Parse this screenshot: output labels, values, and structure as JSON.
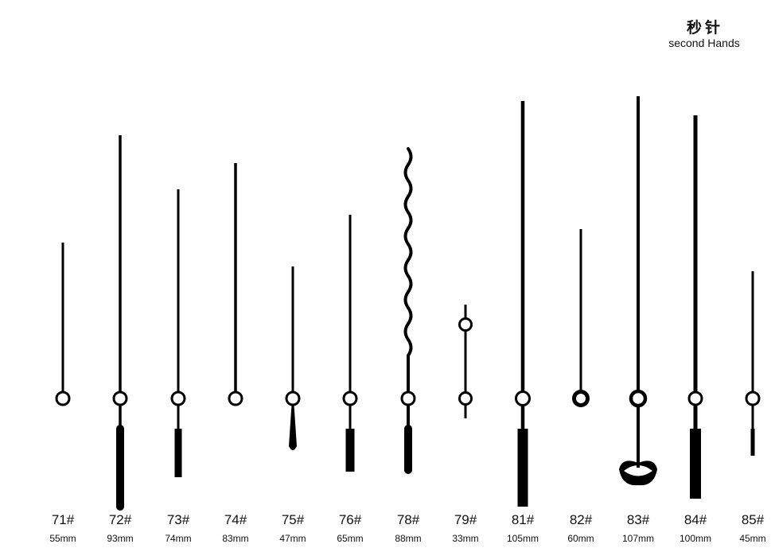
{
  "header": {
    "title_cn": "秒针",
    "title_en": "second Hands"
  },
  "hands": [
    {
      "code": "71#",
      "length": "55mm",
      "style": "plain"
    },
    {
      "code": "72#",
      "length": "93mm",
      "style": "long-tail"
    },
    {
      "code": "73#",
      "length": "74mm",
      "style": "tail"
    },
    {
      "code": "74#",
      "length": "83mm",
      "style": "plain"
    },
    {
      "code": "75#",
      "length": "47mm",
      "style": "tapered-tail"
    },
    {
      "code": "76#",
      "length": "65mm",
      "style": "tail"
    },
    {
      "code": "78#",
      "length": "88mm",
      "style": "wavy"
    },
    {
      "code": "79#",
      "length": "33mm",
      "style": "double-circle"
    },
    {
      "code": "81#",
      "length": "105mm",
      "style": "wide-tail"
    },
    {
      "code": "82#",
      "length": "60mm",
      "style": "plain"
    },
    {
      "code": "83#",
      "length": "107mm",
      "style": "crescent"
    },
    {
      "code": "84#",
      "length": "100mm",
      "style": "wide-tail"
    },
    {
      "code": "85#",
      "length": "45mm",
      "style": "thin-tail"
    }
  ]
}
